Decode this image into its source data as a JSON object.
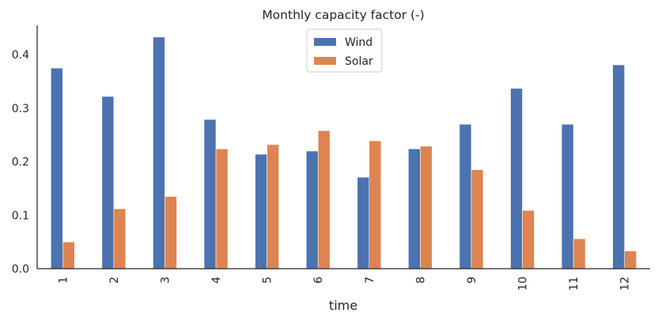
{
  "chart_data": {
    "type": "bar",
    "title": "Monthly capacity factor (-)",
    "xlabel": "time",
    "ylabel": "",
    "categories": [
      "1",
      "2",
      "3",
      "4",
      "5",
      "6",
      "7",
      "8",
      "9",
      "10",
      "11",
      "12"
    ],
    "series": [
      {
        "name": "Wind",
        "color": "#4c72b0",
        "values": [
          0.375,
          0.322,
          0.433,
          0.279,
          0.214,
          0.22,
          0.171,
          0.224,
          0.27,
          0.337,
          0.27,
          0.381
        ]
      },
      {
        "name": "Solar",
        "color": "#dd8452",
        "values": [
          0.05,
          0.112,
          0.135,
          0.224,
          0.232,
          0.258,
          0.239,
          0.229,
          0.185,
          0.109,
          0.056,
          0.033
        ]
      }
    ],
    "ylim": [
      0,
      0.455
    ],
    "yticks": [
      "0.0",
      "0.1",
      "0.2",
      "0.3",
      "0.4"
    ],
    "grid": false,
    "legend_position": "top-center"
  }
}
